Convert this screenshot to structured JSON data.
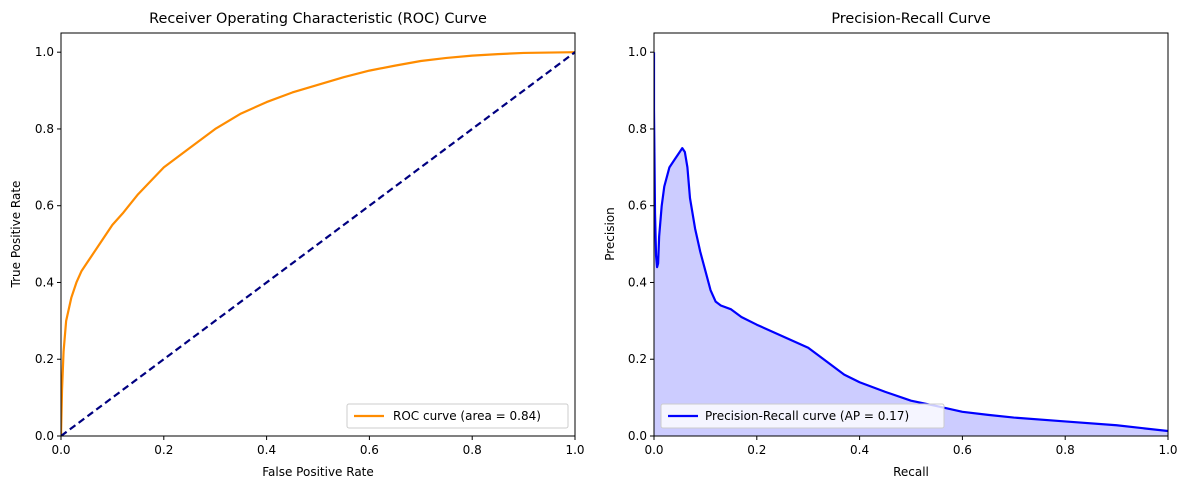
{
  "chart_data": [
    {
      "type": "line",
      "title": "Receiver Operating Characteristic (ROC) Curve",
      "xlabel": "False Positive Rate",
      "ylabel": "True Positive Rate",
      "xlim": [
        0,
        1.0
      ],
      "ylim": [
        0,
        1.05
      ],
      "xticks": [
        "0.0",
        "0.2",
        "0.4",
        "0.6",
        "0.8",
        "1.0"
      ],
      "yticks": [
        "0.0",
        "0.2",
        "0.4",
        "0.6",
        "0.8",
        "1.0"
      ],
      "grid": false,
      "legend_position": "lower-right",
      "series": [
        {
          "name": "ROC curve (area = 0.84)",
          "color": "#ff8c00",
          "style": "solid",
          "x": [
            0,
            0.002,
            0.005,
            0.01,
            0.02,
            0.03,
            0.04,
            0.05,
            0.06,
            0.08,
            0.1,
            0.12,
            0.15,
            0.2,
            0.25,
            0.3,
            0.35,
            0.4,
            0.45,
            0.5,
            0.55,
            0.6,
            0.65,
            0.7,
            0.75,
            0.8,
            0.85,
            0.9,
            0.95,
            1.0
          ],
          "y": [
            0,
            0.12,
            0.22,
            0.3,
            0.36,
            0.4,
            0.43,
            0.45,
            0.47,
            0.51,
            0.55,
            0.58,
            0.63,
            0.7,
            0.75,
            0.8,
            0.84,
            0.87,
            0.895,
            0.915,
            0.935,
            0.952,
            0.965,
            0.977,
            0.985,
            0.991,
            0.995,
            0.998,
            0.999,
            1.0
          ]
        },
        {
          "name": "",
          "color": "#000080",
          "style": "dashed",
          "x": [
            0,
            1
          ],
          "y": [
            0,
            1
          ]
        }
      ]
    },
    {
      "type": "area",
      "title": "Precision-Recall Curve",
      "xlabel": "Recall",
      "ylabel": "Precision",
      "xlim": [
        0,
        1.0
      ],
      "ylim": [
        0,
        1.05
      ],
      "xticks": [
        "0.0",
        "0.2",
        "0.4",
        "0.6",
        "0.8",
        "1.0"
      ],
      "yticks": [
        "0.0",
        "0.2",
        "0.4",
        "0.6",
        "0.8",
        "1.0"
      ],
      "grid": false,
      "legend_position": "lower-left",
      "fill_color": "#ccccff",
      "series": [
        {
          "name": "Precision-Recall curve (AP = 0.17)",
          "color": "#0000ff",
          "style": "solid",
          "x": [
            0,
            0.0,
            0.002,
            0.004,
            0.006,
            0.008,
            0.01,
            0.015,
            0.02,
            0.03,
            0.04,
            0.05,
            0.055,
            0.06,
            0.065,
            0.07,
            0.08,
            0.09,
            0.1,
            0.11,
            0.12,
            0.13,
            0.15,
            0.17,
            0.2,
            0.25,
            0.3,
            0.33,
            0.37,
            0.4,
            0.45,
            0.5,
            0.55,
            0.6,
            0.65,
            0.7,
            0.8,
            0.9,
            1.0
          ],
          "y": [
            1.0,
            0.85,
            0.58,
            0.47,
            0.44,
            0.45,
            0.52,
            0.6,
            0.65,
            0.7,
            0.72,
            0.74,
            0.75,
            0.74,
            0.7,
            0.62,
            0.54,
            0.48,
            0.43,
            0.38,
            0.35,
            0.34,
            0.33,
            0.31,
            0.29,
            0.26,
            0.23,
            0.2,
            0.16,
            0.14,
            0.115,
            0.092,
            0.078,
            0.063,
            0.055,
            0.048,
            0.038,
            0.028,
            0.013
          ]
        }
      ]
    }
  ]
}
